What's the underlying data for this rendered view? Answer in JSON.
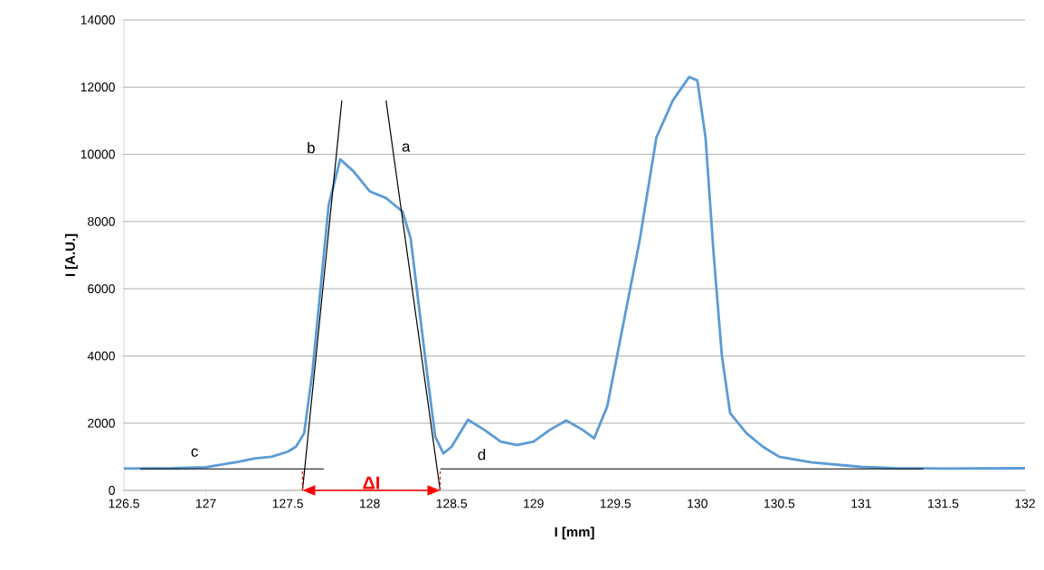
{
  "chart_data": {
    "type": "line",
    "xlabel": "I [mm]",
    "ylabel": "I [A.U.]",
    "xlim": [
      126.5,
      132
    ],
    "ylim": [
      0,
      14000
    ],
    "xticks": [
      126.5,
      127,
      127.5,
      128,
      128.5,
      129,
      129.5,
      130,
      130.5,
      131,
      131.5,
      132
    ],
    "yticks": [
      0,
      2000,
      4000,
      6000,
      8000,
      10000,
      12000,
      14000
    ],
    "grid": "y",
    "series": [
      {
        "color": "#5b9bd5",
        "x": [
          126.5,
          126.8,
          127.0,
          127.2,
          127.3,
          127.4,
          127.5,
          127.55,
          127.6,
          127.65,
          127.7,
          127.75,
          127.82,
          127.9,
          128.0,
          128.1,
          128.2,
          128.25,
          128.3,
          128.35,
          128.4,
          128.45,
          128.5,
          128.6,
          128.7,
          128.8,
          128.9,
          129.0,
          129.1,
          129.2,
          129.3,
          129.37,
          129.45,
          129.55,
          129.65,
          129.75,
          129.85,
          129.95,
          130.0,
          130.05,
          130.1,
          130.15,
          130.2,
          130.3,
          130.4,
          130.5,
          130.7,
          131.0,
          131.2,
          131.5,
          132.0
        ],
        "values": [
          650,
          660,
          690,
          850,
          950,
          1000,
          1150,
          1300,
          1700,
          3500,
          6000,
          8500,
          9850,
          9500,
          8900,
          8700,
          8300,
          7500,
          5500,
          3500,
          1600,
          1100,
          1300,
          2100,
          1800,
          1450,
          1350,
          1450,
          1800,
          2080,
          1800,
          1550,
          2500,
          5000,
          7500,
          10500,
          11600,
          12300,
          12200,
          10500,
          7000,
          4000,
          2300,
          1700,
          1300,
          1000,
          830,
          700,
          660,
          650,
          660
        ]
      },
      {
        "type": "line",
        "color": "#000000",
        "x": [
          126.6,
          127.72
        ],
        "values": [
          640,
          640
        ]
      },
      {
        "type": "line",
        "color": "#000000",
        "x": [
          128.43,
          131.38
        ],
        "values": [
          640,
          640
        ]
      },
      {
        "type": "line",
        "color": "#000000",
        "x": [
          127.59,
          127.83
        ],
        "values": [
          0,
          11600
        ]
      },
      {
        "type": "line",
        "color": "#000000",
        "x": [
          128.1,
          128.43
        ],
        "values": [
          11600,
          0
        ]
      },
      {
        "type": "line",
        "color": "#ff0000",
        "line_style": "dashed",
        "x": [
          127.59,
          127.59
        ],
        "values": [
          0,
          640
        ]
      },
      {
        "type": "line",
        "color": "#ff0000",
        "line_style": "dashed",
        "x": [
          128.43,
          128.43
        ],
        "values": [
          0,
          640
        ]
      }
    ],
    "annotations": [
      "a",
      "b",
      "c",
      "d",
      "ΔI"
    ]
  }
}
